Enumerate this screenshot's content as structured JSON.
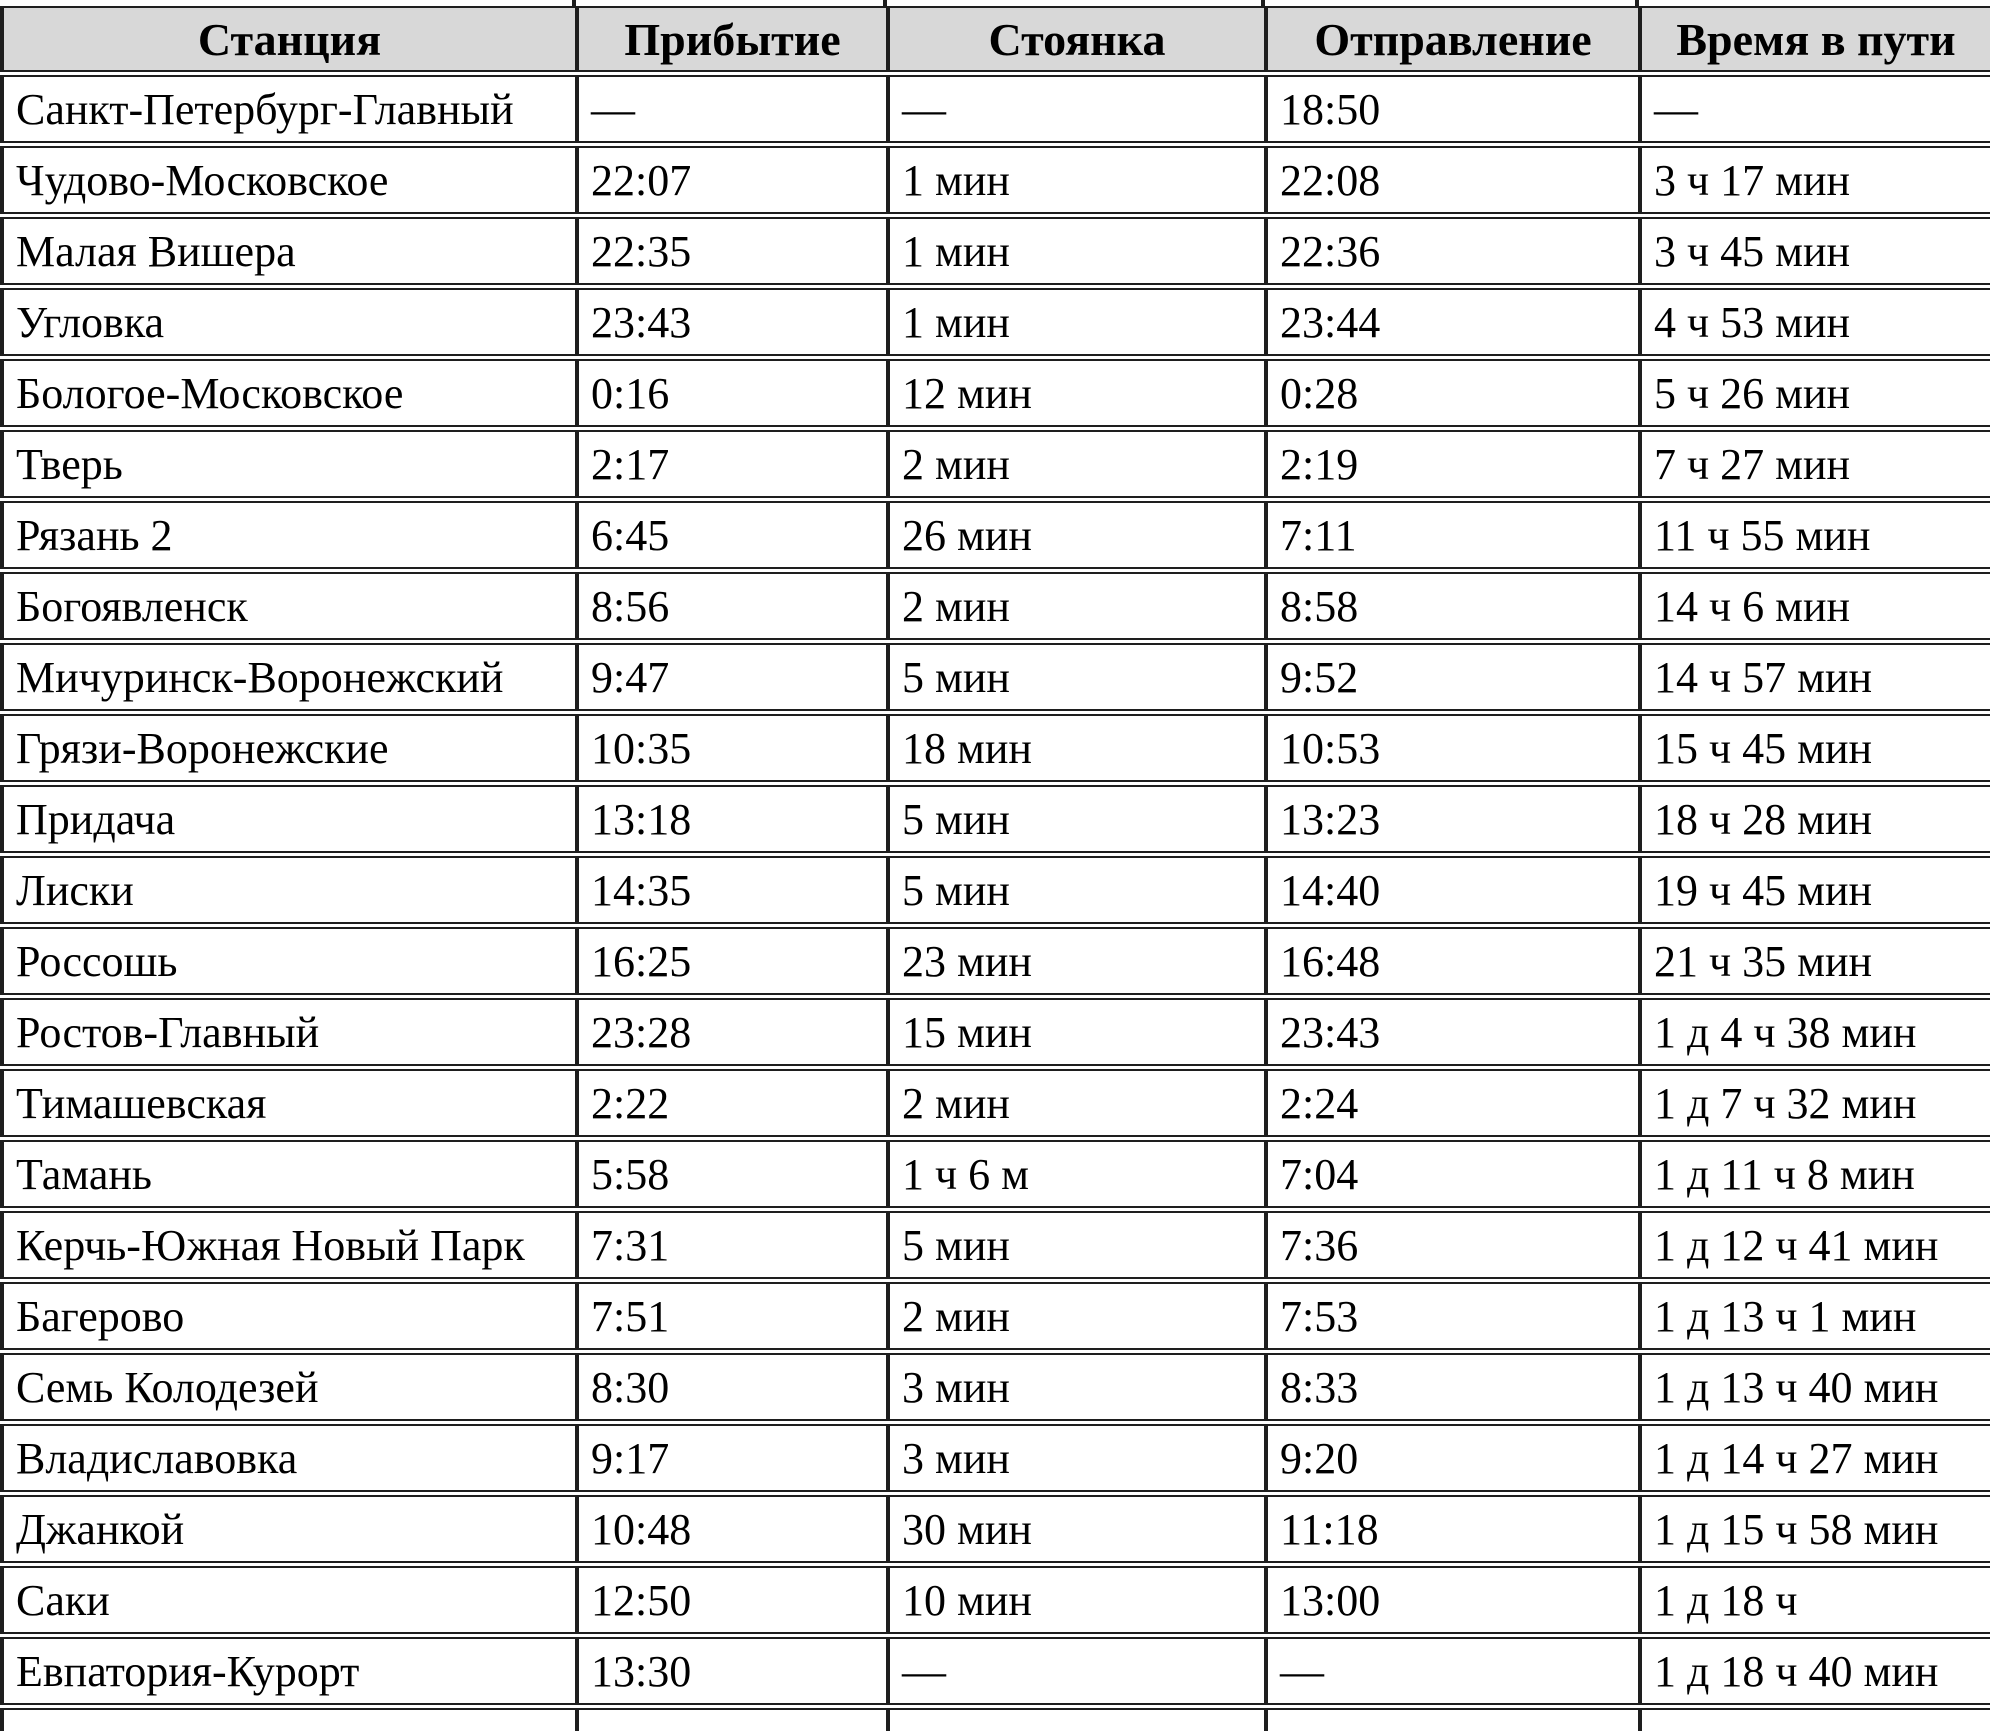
{
  "colors": {
    "header_bg": "#d8d8d8",
    "grid_border": "#1e1e1e",
    "text": "#000000"
  },
  "table": {
    "columns": [
      "Станция",
      "Прибытие",
      "Стоянка",
      "Отправление",
      "Время в пути"
    ],
    "rows": [
      [
        "Санкт-Петербург-Главный",
        "—",
        "—",
        "18:50",
        "—"
      ],
      [
        "Чудово-Московское",
        "22:07",
        "1 мин",
        "22:08",
        "3 ч 17 мин"
      ],
      [
        "Малая Вишера",
        "22:35",
        "1 мин",
        "22:36",
        "3 ч 45 мин"
      ],
      [
        "Угловка",
        "23:43",
        "1 мин",
        "23:44",
        "4 ч 53 мин"
      ],
      [
        "Бологое-Московское",
        "0:16",
        "12 мин",
        "0:28",
        "5 ч 26 мин"
      ],
      [
        "Тверь",
        "2:17",
        "2 мин",
        "2:19",
        "7 ч 27 мин"
      ],
      [
        "Рязань 2",
        "6:45",
        "26 мин",
        "7:11",
        "11 ч 55 мин"
      ],
      [
        "Богоявленск",
        "8:56",
        "2 мин",
        "8:58",
        "14 ч 6 мин"
      ],
      [
        "Мичуринск-Воронежский",
        "9:47",
        "5 мин",
        "9:52",
        "14 ч 57 мин"
      ],
      [
        "Грязи-Воронежские",
        "10:35",
        "18 мин",
        "10:53",
        "15 ч 45 мин"
      ],
      [
        "Придача",
        "13:18",
        "5 мин",
        "13:23",
        "18 ч 28 мин"
      ],
      [
        "Лиски",
        "14:35",
        "5 мин",
        "14:40",
        "19 ч 45 мин"
      ],
      [
        "Россошь",
        "16:25",
        "23 мин",
        "16:48",
        "21 ч 35 мин"
      ],
      [
        "Ростов-Главный",
        "23:28",
        "15 мин",
        "23:43",
        "1 д 4 ч 38 мин"
      ],
      [
        "Тимашевская",
        "2:22",
        "2 мин",
        "2:24",
        "1 д 7 ч 32 мин"
      ],
      [
        "Тамань",
        "5:58",
        "1 ч 6 м",
        "7:04",
        "1 д 11 ч 8 мин"
      ],
      [
        "Керчь-Южная Новый Парк",
        "7:31",
        "5 мин",
        "7:36",
        "1 д 12 ч 41 мин"
      ],
      [
        "Багерово",
        "7:51",
        "2 мин",
        "7:53",
        "1 д 13 ч 1 мин"
      ],
      [
        "Семь Колодезей",
        "8:30",
        "3 мин",
        "8:33",
        "1 д 13 ч 40 мин"
      ],
      [
        "Владиславовка",
        "9:17",
        "3 мин",
        "9:20",
        "1 д 14 ч 27 мин"
      ],
      [
        "Джанкой",
        "10:48",
        "30 мин",
        "11:18",
        "1 д 15 ч 58 мин"
      ],
      [
        "Саки",
        "12:50",
        "10 мин",
        "13:00",
        "1 д 18 ч"
      ],
      [
        "Евпатория-Курорт",
        "13:30",
        "—",
        "—",
        "1 д 18 ч 40 мин"
      ]
    ]
  }
}
